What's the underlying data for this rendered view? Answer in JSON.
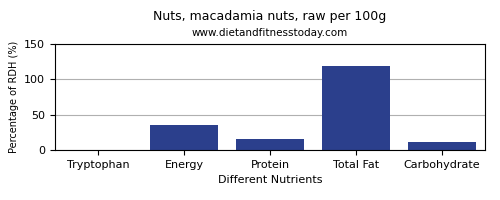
{
  "chart_data": {
    "type": "bar",
    "title": "Nuts, macadamia nuts, raw per 100g",
    "subtitle": "www.dietandfitnesstoday.com",
    "xlabel": "Different Nutrients",
    "ylabel": "Percentage of RDH (%)",
    "categories": [
      "Tryptophan",
      "Energy",
      "Protein",
      "Total Fat",
      "Carbohydrate"
    ],
    "values": [
      0.5,
      36,
      15,
      119,
      12
    ],
    "color": "#2b3f8c",
    "ylim": [
      0,
      150
    ],
    "yticks": [
      0,
      50,
      100,
      150
    ],
    "grid": true
  }
}
